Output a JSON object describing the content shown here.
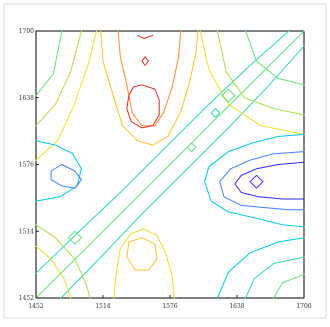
{
  "chart_data": {
    "type": "contour",
    "title": "",
    "xlabel": "",
    "ylabel": "",
    "x_ticks": [
      1452,
      1514,
      1576,
      1638,
      1700
    ],
    "y_ticks": [
      1452,
      1514,
      1576,
      1638,
      1700
    ],
    "xlim": [
      1452,
      1700
    ],
    "ylim": [
      1452,
      1700
    ],
    "grid": false,
    "colormap": "rainbow",
    "level_colors": [
      "#2a2aff",
      "#3f7fff",
      "#00c8e8",
      "#33d6b0",
      "#66e07a",
      "#a8e04a",
      "#e8e030",
      "#ffc030",
      "#ff8a30",
      "#e03020"
    ],
    "contour_sets": [
      {
        "name": "diagonal-ridge",
        "level": 5,
        "points": [
          [
            1452,
            1452
          ],
          [
            1500,
            1500
          ],
          [
            1546,
            1546
          ],
          [
            1576,
            1576
          ],
          [
            1620,
            1620
          ],
          [
            1660,
            1660
          ],
          [
            1700,
            1700
          ]
        ]
      },
      {
        "name": "diagonal-ridge-upper",
        "level": 4,
        "points": [
          [
            1452,
            1475
          ],
          [
            1490,
            1512
          ],
          [
            1530,
            1550
          ],
          [
            1570,
            1590
          ],
          [
            1610,
            1630
          ],
          [
            1650,
            1668
          ],
          [
            1686,
            1700
          ]
        ]
      },
      {
        "name": "diagonal-ridge-lower",
        "level": 4,
        "points": [
          [
            1475,
            1452
          ],
          [
            1512,
            1490
          ],
          [
            1550,
            1530
          ],
          [
            1590,
            1570
          ],
          [
            1630,
            1610
          ],
          [
            1668,
            1650
          ],
          [
            1700,
            1686
          ]
        ]
      },
      {
        "name": "top-center-outer",
        "level": 8,
        "points": [
          [
            1512,
            1700
          ],
          [
            1514,
            1672
          ],
          [
            1522,
            1645
          ],
          [
            1532,
            1612
          ],
          [
            1546,
            1598
          ],
          [
            1560,
            1594
          ],
          [
            1574,
            1602
          ],
          [
            1586,
            1625
          ],
          [
            1594,
            1652
          ],
          [
            1600,
            1680
          ],
          [
            1602,
            1700
          ]
        ]
      },
      {
        "name": "top-center-mid",
        "level": 9,
        "points": [
          [
            1528,
            1700
          ],
          [
            1530,
            1676
          ],
          [
            1536,
            1650
          ],
          [
            1541,
            1624
          ],
          [
            1550,
            1612
          ],
          [
            1562,
            1612
          ],
          [
            1570,
            1624
          ],
          [
            1578,
            1648
          ],
          [
            1584,
            1676
          ],
          [
            1586,
            1700
          ]
        ]
      },
      {
        "name": "top-center-inner",
        "level": 10,
        "points": [
          [
            1538,
            1640
          ],
          [
            1536,
            1628
          ],
          [
            1540,
            1616
          ],
          [
            1550,
            1610
          ],
          [
            1560,
            1612
          ],
          [
            1566,
            1622
          ],
          [
            1566,
            1636
          ],
          [
            1562,
            1646
          ],
          [
            1550,
            1650
          ],
          [
            1542,
            1648
          ],
          [
            1538,
            1640
          ]
        ]
      },
      {
        "name": "top-center-tip",
        "level": 10,
        "points": [
          [
            1546,
            1696
          ],
          [
            1552,
            1693
          ],
          [
            1560,
            1696
          ]
        ]
      },
      {
        "name": "top-center-spot",
        "level": 10,
        "points": [
          [
            1550,
            1672
          ],
          [
            1553,
            1668
          ],
          [
            1556,
            1672
          ],
          [
            1553,
            1676
          ],
          [
            1550,
            1672
          ]
        ]
      },
      {
        "name": "top-left-arc-1",
        "level": 6,
        "points": [
          [
            1452,
            1612
          ],
          [
            1470,
            1632
          ],
          [
            1484,
            1662
          ],
          [
            1494,
            1700
          ]
        ]
      },
      {
        "name": "top-left-arc-2",
        "level": 7,
        "points": [
          [
            1452,
            1580
          ],
          [
            1472,
            1598
          ],
          [
            1486,
            1628
          ],
          [
            1500,
            1668
          ],
          [
            1508,
            1700
          ]
        ]
      },
      {
        "name": "top-left-arc-3",
        "level": 5,
        "points": [
          [
            1452,
            1640
          ],
          [
            1468,
            1660
          ],
          [
            1476,
            1700
          ]
        ]
      },
      {
        "name": "top-right-arc-1",
        "level": 6,
        "points": [
          [
            1620,
            1700
          ],
          [
            1628,
            1662
          ],
          [
            1645,
            1638
          ],
          [
            1672,
            1628
          ],
          [
            1700,
            1622
          ]
        ]
      },
      {
        "name": "top-right-arc-2",
        "level": 5,
        "points": [
          [
            1646,
            1700
          ],
          [
            1656,
            1672
          ],
          [
            1676,
            1656
          ],
          [
            1700,
            1650
          ]
        ]
      },
      {
        "name": "top-right-arc-3",
        "level": 7,
        "points": [
          [
            1604,
            1700
          ],
          [
            1612,
            1664
          ],
          [
            1630,
            1632
          ],
          [
            1660,
            1612
          ],
          [
            1700,
            1604
          ]
        ]
      },
      {
        "name": "right-center-outer",
        "level": 3,
        "points": [
          [
            1700,
            1604
          ],
          [
            1676,
            1602
          ],
          [
            1652,
            1596
          ],
          [
            1630,
            1588
          ],
          [
            1612,
            1574
          ],
          [
            1608,
            1560
          ],
          [
            1614,
            1542
          ],
          [
            1630,
            1532
          ],
          [
            1656,
            1526
          ],
          [
            1680,
            1520
          ],
          [
            1700,
            1518
          ]
        ]
      },
      {
        "name": "right-center-mid",
        "level": 2,
        "points": [
          [
            1700,
            1588
          ],
          [
            1672,
            1586
          ],
          [
            1650,
            1580
          ],
          [
            1632,
            1572
          ],
          [
            1622,
            1560
          ],
          [
            1626,
            1546
          ],
          [
            1642,
            1538
          ],
          [
            1664,
            1536
          ],
          [
            1686,
            1534
          ],
          [
            1700,
            1534
          ]
        ]
      },
      {
        "name": "right-center-inner",
        "level": 1,
        "points": [
          [
            1700,
            1578
          ],
          [
            1676,
            1576
          ],
          [
            1656,
            1572
          ],
          [
            1642,
            1566
          ],
          [
            1636,
            1558
          ],
          [
            1642,
            1550
          ],
          [
            1658,
            1546
          ],
          [
            1680,
            1544
          ],
          [
            1700,
            1544
          ]
        ]
      },
      {
        "name": "right-center-core",
        "level": 1,
        "points": [
          [
            1656,
            1566
          ],
          [
            1650,
            1560
          ],
          [
            1656,
            1554
          ],
          [
            1662,
            1560
          ],
          [
            1656,
            1566
          ]
        ]
      },
      {
        "name": "left-center-outer",
        "level": 3,
        "points": [
          [
            1452,
            1598
          ],
          [
            1470,
            1594
          ],
          [
            1486,
            1586
          ],
          [
            1494,
            1572
          ],
          [
            1490,
            1556
          ],
          [
            1474,
            1546
          ],
          [
            1452,
            1542
          ]
        ]
      },
      {
        "name": "left-center-inner",
        "level": 2,
        "points": [
          [
            1466,
            1570
          ],
          [
            1476,
            1576
          ],
          [
            1488,
            1570
          ],
          [
            1494,
            1562
          ],
          [
            1488,
            1554
          ],
          [
            1476,
            1556
          ],
          [
            1466,
            1562
          ],
          [
            1466,
            1570
          ]
        ]
      },
      {
        "name": "bottom-center-outer",
        "level": 7,
        "points": [
          [
            1524,
            1452
          ],
          [
            1526,
            1474
          ],
          [
            1530,
            1498
          ],
          [
            1540,
            1512
          ],
          [
            1552,
            1516
          ],
          [
            1564,
            1510
          ],
          [
            1572,
            1494
          ],
          [
            1578,
            1472
          ],
          [
            1580,
            1452
          ]
        ]
      },
      {
        "name": "bottom-center-inner",
        "level": 8,
        "points": [
          [
            1536,
            1490
          ],
          [
            1538,
            1504
          ],
          [
            1550,
            1508
          ],
          [
            1562,
            1502
          ],
          [
            1564,
            1488
          ],
          [
            1556,
            1478
          ],
          [
            1544,
            1478
          ],
          [
            1536,
            1490
          ]
        ]
      },
      {
        "name": "bottom-left-arc-1",
        "level": 6,
        "points": [
          [
            1452,
            1520
          ],
          [
            1470,
            1508
          ],
          [
            1488,
            1488
          ],
          [
            1498,
            1466
          ],
          [
            1502,
            1452
          ]
        ]
      },
      {
        "name": "bottom-left-arc-2",
        "level": 7,
        "points": [
          [
            1452,
            1500
          ],
          [
            1466,
            1488
          ],
          [
            1478,
            1470
          ],
          [
            1484,
            1452
          ]
        ]
      },
      {
        "name": "bottom-right-arc-1",
        "level": 3,
        "points": [
          [
            1620,
            1452
          ],
          [
            1630,
            1476
          ],
          [
            1650,
            1494
          ],
          [
            1676,
            1504
          ],
          [
            1700,
            1508
          ]
        ]
      },
      {
        "name": "bottom-right-arc-2",
        "level": 4,
        "points": [
          [
            1646,
            1452
          ],
          [
            1654,
            1470
          ],
          [
            1672,
            1484
          ],
          [
            1700,
            1490
          ]
        ]
      },
      {
        "name": "bottom-right-arc-3",
        "level": 5,
        "points": [
          [
            1672,
            1452
          ],
          [
            1680,
            1466
          ],
          [
            1700,
            1474
          ]
        ]
      },
      {
        "name": "mid-right-cross",
        "level": 5,
        "points": [
          [
            1624,
            1640
          ],
          [
            1630,
            1634
          ],
          [
            1636,
            1640
          ],
          [
            1630,
            1646
          ],
          [
            1624,
            1640
          ]
        ]
      },
      {
        "name": "mid-left-cross",
        "level": 5,
        "points": [
          [
            1482,
            1508
          ],
          [
            1488,
            1502
          ],
          [
            1494,
            1508
          ],
          [
            1488,
            1514
          ],
          [
            1482,
            1508
          ]
        ]
      },
      {
        "name": "center-small-loop",
        "level": 5,
        "points": [
          [
            1592,
            1592
          ],
          [
            1596,
            1588
          ],
          [
            1600,
            1592
          ],
          [
            1596,
            1596
          ],
          [
            1592,
            1592
          ]
        ]
      },
      {
        "name": "mid-upper-spot",
        "level": 4,
        "points": [
          [
            1614,
            1624
          ],
          [
            1618,
            1620
          ],
          [
            1622,
            1624
          ],
          [
            1618,
            1628
          ],
          [
            1614,
            1624
          ]
        ]
      }
    ]
  }
}
